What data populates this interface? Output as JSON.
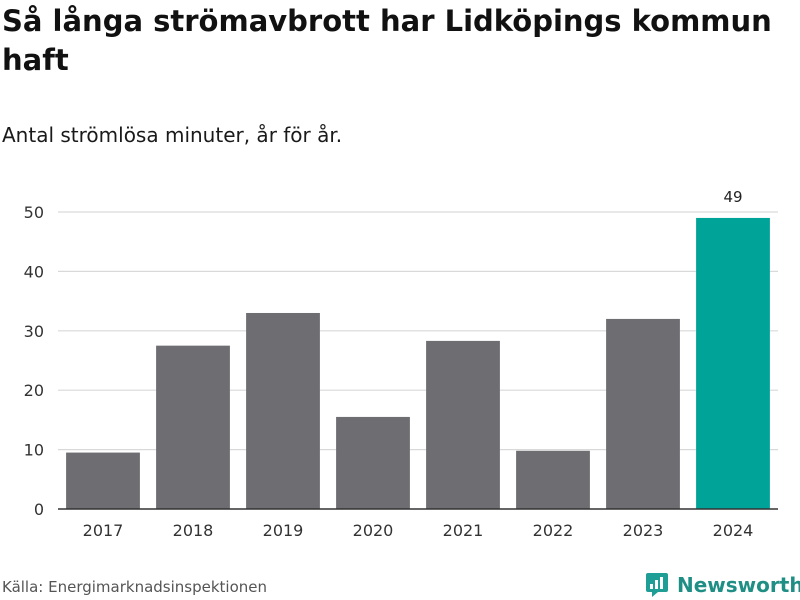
{
  "title": "Så långa strömavbrott har Lidköpings kommun haft",
  "subtitle": "Antal strömlösa minuter, år för år.",
  "source": "Källa: Energimarknadsinspektionen",
  "brand": {
    "name": "Newsworthy",
    "icon": "newsworthy-logo-icon",
    "color": "#1f9e95"
  },
  "colors": {
    "bar": "#6e6d72",
    "highlight": "#00a398",
    "grid": "#d9d9d9",
    "axis": "#333333"
  },
  "chart_data": {
    "type": "bar",
    "title": "Så långa strömavbrott har Lidköpings kommun haft",
    "subtitle": "Antal strömlösa minuter, år för år.",
    "categories": [
      "2017",
      "2018",
      "2019",
      "2020",
      "2021",
      "2022",
      "2023",
      "2024"
    ],
    "values": [
      9.5,
      27.5,
      33,
      15.5,
      28.3,
      9.8,
      32,
      49
    ],
    "highlight_index": 7,
    "data_labels": [
      {
        "index": 7,
        "text": "49"
      }
    ],
    "xlabel": "",
    "ylabel": "",
    "ylim": [
      0,
      50
    ],
    "yticks": [
      0,
      10,
      20,
      30,
      40,
      50
    ],
    "grid": true
  }
}
